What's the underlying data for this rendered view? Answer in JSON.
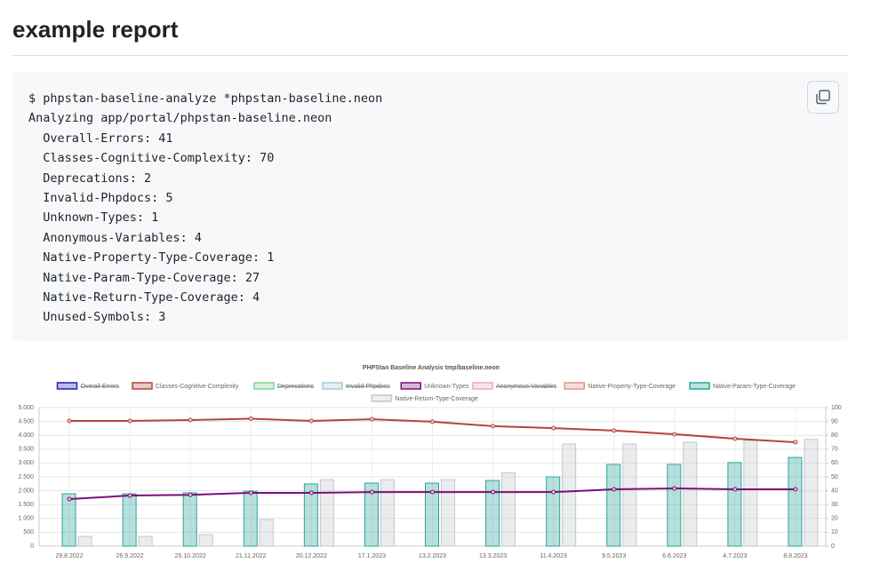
{
  "heading": "example report",
  "code_block": {
    "lines": [
      "$ phpstan-baseline-analyze *phpstan-baseline.neon",
      "Analyzing app/portal/phpstan-baseline.neon",
      "  Overall-Errors: 41",
      "  Classes-Cognitive-Complexity: 70",
      "  Deprecations: 2",
      "  Invalid-Phpdocs: 5",
      "  Unknown-Types: 1",
      "  Anonymous-Variables: 4",
      "  Native-Property-Type-Coverage: 1",
      "  Native-Param-Type-Coverage: 27",
      "  Native-Return-Type-Coverage: 4",
      "  Unused-Symbols: 3"
    ]
  },
  "chart": {
    "type": "bar-line",
    "title": "PHPStan Baseline Analysis tmp/baseline.neon",
    "categories": [
      "29.8.2022",
      "26.9.2022",
      "25.10.2022",
      "21.11.2022",
      "20.12.2022",
      "17.1.2023",
      "13.2.2023",
      "13.3.2023",
      "11.4.2023",
      "9.5.2023",
      "6.6.2023",
      "4.7.2023",
      "8.8.2023"
    ],
    "ylim": [
      0,
      5000
    ],
    "yticks": [
      {
        "value": 0,
        "label": "0"
      },
      {
        "value": 500,
        "label": "500"
      },
      {
        "value": 1000,
        "label": "1.000"
      },
      {
        "value": 1500,
        "label": "1.500"
      },
      {
        "value": 2000,
        "label": "2.000"
      },
      {
        "value": 2500,
        "label": "2.500"
      },
      {
        "value": 3000,
        "label": "3.000"
      },
      {
        "value": 3500,
        "label": "3.500"
      },
      {
        "value": 4000,
        "label": "4.000"
      },
      {
        "value": 4500,
        "label": "4.500"
      },
      {
        "value": 5000,
        "label": "5.000"
      }
    ],
    "y2lim": [
      0,
      100
    ],
    "y2ticks": [
      0,
      10,
      20,
      30,
      40,
      50,
      60,
      70,
      80,
      90,
      100
    ],
    "grid": true,
    "series": [
      {
        "name": "Overall-Errors",
        "color": "#1f1fbf",
        "hidden": true
      },
      {
        "name": "Classes-Cognitive-Complexity",
        "color": "#b5443c",
        "kind": "line",
        "values": [
          4520,
          4520,
          4550,
          4600,
          4520,
          4580,
          4490,
          4330,
          4260,
          4170,
          4040,
          3880,
          3750
        ]
      },
      {
        "name": "Deprecations",
        "color": "#7fd88a",
        "hidden": true
      },
      {
        "name": "Invalid-Phpdocs",
        "color": "#a9c9d9",
        "hidden": true
      },
      {
        "name": "Unknown-Types",
        "color": "#7a0f7a",
        "kind": "line",
        "axis": "y2",
        "values": [
          34,
          36.5,
          37,
          38.5,
          38.5,
          39,
          39,
          39,
          39,
          41,
          41.7,
          41,
          41
        ]
      },
      {
        "name": "Anonymous-Variables",
        "color": "#f0a8b2",
        "hidden": true
      },
      {
        "name": "Native-Property-Type-Coverage",
        "color": "#e4928a"
      },
      {
        "name": "Native-Param-Type-Coverage",
        "color": "#2ea59c",
        "kind": "bar",
        "axis": "y2",
        "values": [
          37.8,
          37.8,
          38.5,
          39.7,
          44.9,
          45.5,
          45.5,
          47.4,
          50,
          59,
          59,
          60.3,
          64
        ]
      },
      {
        "name": "Native-Return-Type-Coverage",
        "color": "#c4c8cc",
        "kind": "bar",
        "axis": "y2",
        "values": [
          7,
          7,
          8.3,
          19.2,
          48,
          48,
          48,
          53,
          73.7,
          73.7,
          75,
          76.3,
          77
        ]
      }
    ]
  }
}
